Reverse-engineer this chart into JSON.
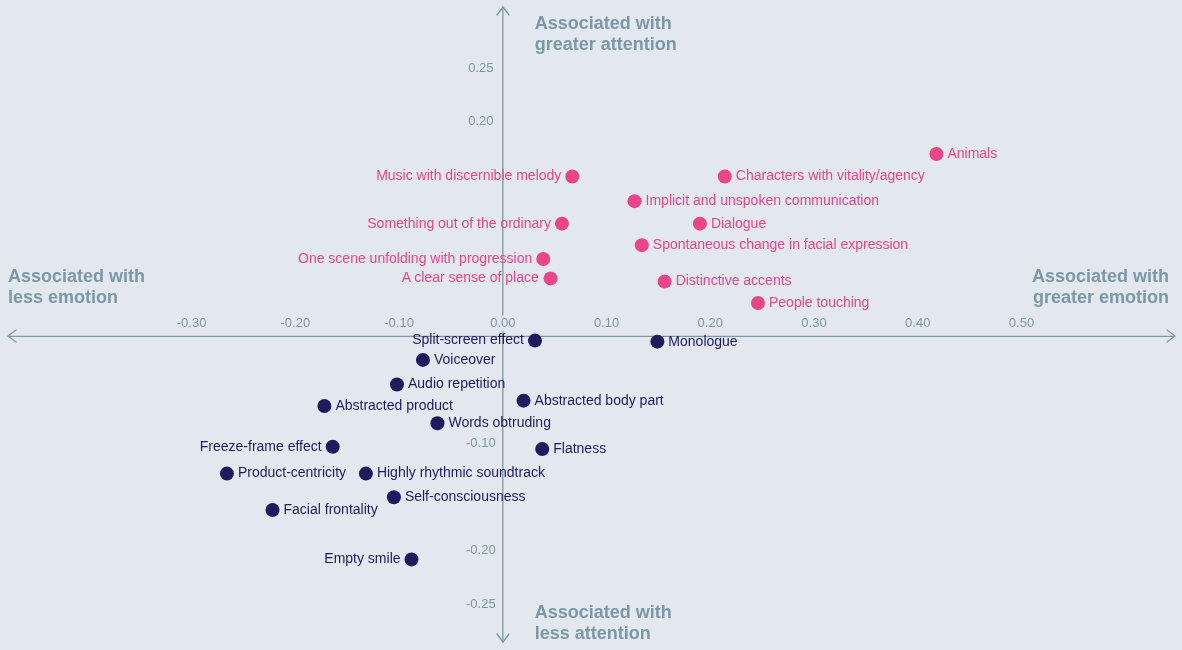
{
  "chart_data": {
    "type": "scatter",
    "xlim": [
      -0.477,
      0.648
    ],
    "ylim": [
      -0.285,
      0.307
    ],
    "xticks": [
      {
        "value": -0.3,
        "label": "-0.30"
      },
      {
        "value": -0.2,
        "label": "-0.20"
      },
      {
        "value": -0.1,
        "label": "-0.10"
      },
      {
        "value": 0,
        "label": "0.00"
      },
      {
        "value": 0.1,
        "label": "0.10"
      },
      {
        "value": 0.2,
        "label": "0.20"
      },
      {
        "value": 0.3,
        "label": "0.30"
      },
      {
        "value": 0.4,
        "label": "0.40"
      },
      {
        "value": 0.5,
        "label": "0.50"
      }
    ],
    "yticks": [
      {
        "value": 0.25,
        "label": "0.25"
      },
      {
        "value": 0.2,
        "label": "0.20"
      },
      {
        "value": -0.1,
        "label": "-0.10"
      },
      {
        "value": -0.2,
        "label": "-0.20"
      },
      {
        "value": -0.25,
        "label": "-0.25"
      }
    ],
    "grid": false,
    "legend": false,
    "marker": "circle",
    "series": [
      {
        "color": "#e8458b",
        "x": [
          0.418,
          0.214,
          0.067,
          0.127,
          0.19,
          0.057,
          0.134,
          0.039,
          0.046,
          0.156,
          0.246
        ],
        "values": [
          0.17,
          0.149,
          0.149,
          0.126,
          0.105,
          0.105,
          0.085,
          0.072,
          0.054,
          0.051,
          0.031
        ]
      },
      {
        "color": "#1e1b5e",
        "x": [
          0.031,
          0.149,
          -0.077,
          -0.102,
          -0.172,
          0.02,
          -0.063,
          -0.164,
          0.038,
          -0.266,
          -0.132,
          -0.105,
          -0.222,
          -0.088
        ],
        "values": [
          -0.004,
          -0.005,
          -0.022,
          -0.045,
          -0.065,
          -0.06,
          -0.081,
          -0.103,
          -0.105,
          -0.128,
          -0.128,
          -0.15,
          -0.162,
          -0.208
        ]
      }
    ],
    "annotations": [
      "Associated with greater attention",
      "Associated with greater emotion",
      "Associated with less attention",
      "Associated with less emotion",
      {
        "text": "Animals",
        "x": 0.418,
        "y": 0.17
      },
      {
        "text": "Characters with vitality/agency",
        "x": 0.214,
        "y": 0.149
      },
      {
        "text": "Music with discernible melody",
        "x": 0.067,
        "y": 0.149
      },
      {
        "text": "Implicit and unspoken communication",
        "x": 0.127,
        "y": 0.126
      },
      {
        "text": "Dialogue",
        "x": 0.19,
        "y": 0.105
      },
      {
        "text": "Something out of the ordinary",
        "x": 0.057,
        "y": 0.105
      },
      {
        "text": "Spontaneous change in facial expression",
        "x": 0.134,
        "y": 0.085
      },
      {
        "text": "One scene unfolding with progression",
        "x": 0.039,
        "y": 0.072
      },
      {
        "text": "A clear sense of place",
        "x": 0.046,
        "y": 0.054
      },
      {
        "text": "Distinctive accents",
        "x": 0.156,
        "y": 0.051
      },
      {
        "text": "People touching",
        "x": 0.246,
        "y": 0.031
      },
      {
        "text": "Split-screen effect",
        "x": 0.031,
        "y": -0.004
      },
      {
        "text": "Monologue",
        "x": 0.149,
        "y": -0.005
      },
      {
        "text": "Voiceover",
        "x": -0.077,
        "y": -0.022
      },
      {
        "text": "Audio repetition",
        "x": -0.102,
        "y": -0.045
      },
      {
        "text": "Abstracted product",
        "x": -0.172,
        "y": -0.065
      },
      {
        "text": "Abstracted body part",
        "x": 0.02,
        "y": -0.06
      },
      {
        "text": "Words obtruding",
        "x": -0.063,
        "y": -0.081
      },
      {
        "text": "Freeze-frame effect",
        "x": -0.164,
        "y": -0.103
      },
      {
        "text": "Flatness",
        "x": 0.038,
        "y": -0.105
      },
      {
        "text": "Product-centricity",
        "x": -0.266,
        "y": -0.128
      },
      {
        "text": "Highly rhythmic soundtrack",
        "x": -0.132,
        "y": -0.128
      },
      {
        "text": "Self-consciousness",
        "x": -0.105,
        "y": -0.15
      },
      {
        "text": "Facial frontality",
        "x": -0.222,
        "y": -0.162
      },
      {
        "text": "Empty smile",
        "x": -0.088,
        "y": -0.208
      }
    ]
  }
}
